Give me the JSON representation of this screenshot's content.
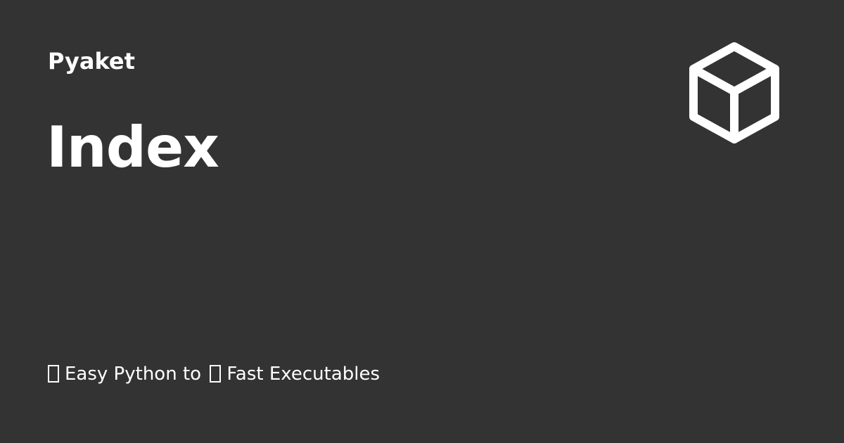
{
  "site": {
    "name": "Pyaket"
  },
  "page": {
    "title": "Index"
  },
  "logo": {
    "icon": "cube-icon",
    "color": "#ffffff"
  },
  "description": {
    "part1": "Easy Python to",
    "part2": "Fast Executables"
  },
  "colors": {
    "background": "#333333",
    "text": "#ffffff"
  }
}
